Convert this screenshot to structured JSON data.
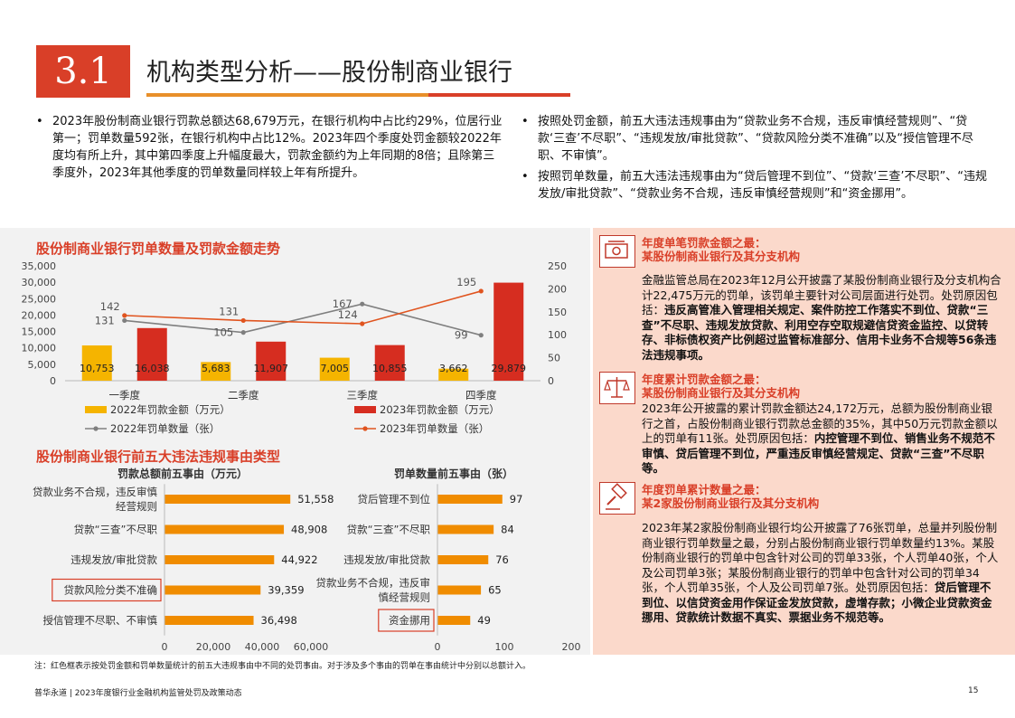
{
  "header": {
    "section_number": "3.1",
    "title": "机构类型分析——股份制商业银行"
  },
  "bullets_left": [
    "2023年股份制商业银行罚款总额达68,679万元，在银行机构中占比约29%，位居行业第一；罚单数量592张，在银行机构中占比12%。2023年四个季度处罚金额较2022年度均有所上升，其中第四季度上升幅度最大，罚款金额约为上年同期的8倍；且除第三季度外，2023年其他季度的罚单数量同样较上年有所提升。"
  ],
  "bullets_right": [
    "按照处罚金额，前五大违法违规事由为“贷款业务不合规，违反审慎经营规则”、“贷款‘三查’不尽职”、“违规发放/审批贷款”、“贷款风险分类不准确”以及“授信管理不尽职、不审慎”。",
    "按照罚单数量，前五大违法违规事由为“贷后管理不到位”、“贷款‘三查’不尽职”、“违规发放/审批贷款”、“贷款业务不合规，违反审慎经营规则”和“资金挪用”。"
  ],
  "charts": {
    "trend_title": "股份制商业银行罚单数量及罚款金额走势",
    "reasons_title": "股份制商业银行前五大违法违规事由类型"
  },
  "chart_data": [
    {
      "type": "bar",
      "title": "股份制商业银行罚单数量及罚款金额走势",
      "categories": [
        "一季度",
        "二季度",
        "三季度",
        "四季度"
      ],
      "series": [
        {
          "name": "2022年罚款金额（万元）",
          "kind": "bar",
          "axis": "left",
          "color": "#f5b400",
          "values": [
            10753,
            5683,
            7005,
            3662
          ],
          "labels": [
            "10,753",
            "5,683",
            "7,005",
            "3,662"
          ]
        },
        {
          "name": "2023年罚款金额（万元）",
          "kind": "bar",
          "axis": "left",
          "color": "#d62d20",
          "values": [
            16038,
            11907,
            10855,
            29879
          ],
          "labels": [
            "16,038",
            "11,907",
            "10,855",
            "29,879"
          ]
        },
        {
          "name": "2022年罚单数量（张）",
          "kind": "line",
          "axis": "right",
          "color": "#7f7f7f",
          "values": [
            131,
            105,
            167,
            99
          ],
          "labels": [
            "131",
            "105",
            "167",
            "99"
          ]
        },
        {
          "name": "2023年罚单数量（张）",
          "kind": "line",
          "axis": "right",
          "color": "#e0541f",
          "values": [
            142,
            131,
            124,
            195
          ],
          "labels": [
            "142",
            "131",
            "124",
            "195"
          ]
        }
      ],
      "y_left": {
        "min": 0,
        "max": 35000,
        "ticks": [
          "0",
          "5,000",
          "10,000",
          "15,000",
          "20,000",
          "25,000",
          "30,000",
          "35,000"
        ]
      },
      "y_right": {
        "min": 0,
        "max": 250,
        "ticks": [
          "0",
          "50",
          "100",
          "150",
          "200",
          "250"
        ]
      },
      "grid": false,
      "legend": "bottom"
    },
    {
      "type": "bar",
      "orientation": "horizontal",
      "title": "罚款总额前五事由（万元）",
      "categories": [
        [
          "贷款业务不合规，违反审慎",
          "经营规则"
        ],
        [
          "贷款“三查”不尽职"
        ],
        [
          "违规发放/审批贷款"
        ],
        [
          "贷款风险分类不准确"
        ],
        [
          "授信管理不尽职、不审慎"
        ]
      ],
      "values": [
        51558,
        48908,
        44922,
        39359,
        36498
      ],
      "labels": [
        "51,558",
        "48,908",
        "44,922",
        "39,359",
        "36,498"
      ],
      "highlighted": [
        3
      ],
      "color": "#f08c00",
      "xlim": [
        0,
        60000
      ],
      "ticks": [
        "0",
        "20,000",
        "40,000",
        "60,000"
      ]
    },
    {
      "type": "bar",
      "orientation": "horizontal",
      "title": "罚单数量前五事由（张）",
      "categories": [
        [
          "贷后管理不到位"
        ],
        [
          "贷款“三查”不尽职"
        ],
        [
          "违规发放/审批贷款"
        ],
        [
          "贷款业务不合规，违反审",
          "慎经营规则"
        ],
        [
          "资金挪用"
        ]
      ],
      "values": [
        97,
        84,
        76,
        65,
        49
      ],
      "labels": [
        "97",
        "84",
        "76",
        "65",
        "49"
      ],
      "highlighted": [
        4
      ],
      "color": "#f08c00",
      "xlim": [
        0,
        200
      ],
      "ticks": [
        "0",
        "100",
        "200"
      ]
    }
  ],
  "right_panel": {
    "items": [
      {
        "icon": "money-icon",
        "title_lines": [
          "年度单笔罚款金额之最：",
          "某股份制商业银行及其分支机构"
        ],
        "text": "金融监管总局在2023年12月公开披露了某股份制商业银行及分支机构合计22,475万元的罚单，该罚单主要针对公司层面进行处罚。处罚原因包括：",
        "bold": "违反高管准入管理相关规定、案件防控工作落实不到位、贷款“三查”不尽职、违规发放贷款、利用空存空取规避信贷资金监控、以贷转存、非标债权资产比例超过监管标准部分、信用卡业务不合规等56条违法违规事项。"
      },
      {
        "icon": "scale-icon",
        "title_lines": [
          "年度累计罚款金额之最：",
          "某股份制商业银行及其分支机构"
        ],
        "text": "2023年公开披露的累计罚款金额达24,172万元，总额为股份制商业银行之首，占股份制商业银行罚款总金额的35%，其中50万元罚款金额以上的罚单有11张。处罚原因包括：",
        "bold": "内控管理不到位、销售业务不规范不审慎、贷后管理不到位，严重违反审慎经营规定、贷款“三查”不尽职等。"
      },
      {
        "icon": "gavel-icon",
        "title_lines": [
          "年度罚单累计数量之最：",
          "某2家股份制商业银行及其分支机构"
        ],
        "text": "2023年某2家股份制商业银行均公开披露了76张罚单，总量并列股份制商业银行罚单数量之最，分别占股份制商业银行罚单数量约13%。某股份制商业银行的罚单中包含针对公司的罚单33张，个人罚单40张，个人及公司罚单3张；某股份制商业银行的罚单中包含针对公司的罚单34张，个人罚单35张，个人及公司罚单7张。处罚原因包括：",
        "bold": "贷后管理不到位、以信贷资金用作保证金发放贷款，虚增存款；小微企业贷款资金挪用、贷款统计数据不真实、票据业务不规范等。"
      }
    ]
  },
  "footnote": "注：红色框表示按处罚金额和罚单数量统计的前五大违规事由中不同的处罚事由。对于涉及多个事由的罚单在事由统计中分别以总额计入。",
  "footer": {
    "left": "普华永道 | 2023年度银行业金融机构监管处罚及政策动态",
    "page": "15"
  }
}
